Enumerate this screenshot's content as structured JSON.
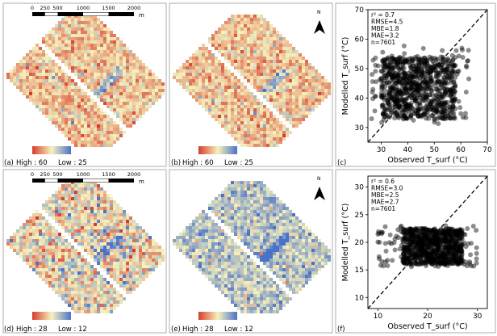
{
  "colors": {
    "ramp_low": "#4a72c9",
    "ramp_mid": "#f6f2bd",
    "ramp_high": "#d63c2a",
    "scatter_point": "#000000",
    "frame": "#999999"
  },
  "map_panels": [
    {
      "id": "a",
      "label": "(a)",
      "legend_high": "High : 60",
      "legend_low": "Low : 25",
      "tone": "hot",
      "scale_bar": true
    },
    {
      "id": "b",
      "label": "(b)",
      "legend_high": "High : 60",
      "legend_low": "Low : 25",
      "tone": "hot",
      "scale_bar": false
    },
    {
      "id": "d",
      "label": "(d)",
      "legend_high": "High : 28",
      "legend_low": "Low : 12",
      "tone": "mixed",
      "scale_bar": true
    },
    {
      "id": "e",
      "label": "(e)",
      "legend_high": "High : 28",
      "legend_low": "Low : 12",
      "tone": "cool",
      "scale_bar": false
    }
  ],
  "scale_bar": {
    "ticks": [
      "0",
      "250",
      "500",
      "1000",
      "1500",
      "2000"
    ],
    "tick_values": [
      0,
      250,
      500,
      1000,
      1500,
      2000
    ],
    "unit": "m"
  },
  "north_arrow": "N",
  "chart_data": [
    {
      "type": "scatter",
      "panel": "(c)",
      "xlabel": "Observed T_surf (°C)",
      "ylabel": "Modelled T_surf (°C)",
      "xlim": [
        25,
        70
      ],
      "ylim": [
        25,
        70
      ],
      "xticks": [
        30,
        40,
        50,
        60,
        70
      ],
      "yticks": [
        30,
        40,
        50,
        60,
        70
      ],
      "reference_line": "1:1 dashed",
      "stats": [
        "r² = 0.7",
        "RMSE=4.5",
        "MBE=1.8",
        "MAE=3.2",
        "n=7601"
      ],
      "n": 7601,
      "point_cloud": {
        "core_x": [
          30,
          58
        ],
        "core_y": [
          33,
          54
        ],
        "x_range": [
          26,
          64
        ],
        "y_range": [
          31,
          58
        ]
      }
    },
    {
      "type": "scatter",
      "panel": "(f)",
      "xlabel": "Observed T_surf (°C)",
      "ylabel": "Modelled T_surf (°C)",
      "xlim": [
        8,
        32
      ],
      "ylim": [
        8,
        32
      ],
      "xticks": [
        10,
        20,
        30
      ],
      "yticks": [
        10,
        15,
        20,
        25,
        30
      ],
      "reference_line": "1:1 dashed",
      "stats": [
        "r² = 0.6",
        "RMSE=3.0",
        "MBE=2.5",
        "MAE=2.7",
        "n=7601"
      ],
      "n": 7601,
      "point_cloud": {
        "core_x": [
          15,
          27
        ],
        "core_y": [
          16,
          22.5
        ],
        "x_range": [
          10,
          30
        ],
        "y_range": [
          15.5,
          23
        ]
      }
    }
  ]
}
